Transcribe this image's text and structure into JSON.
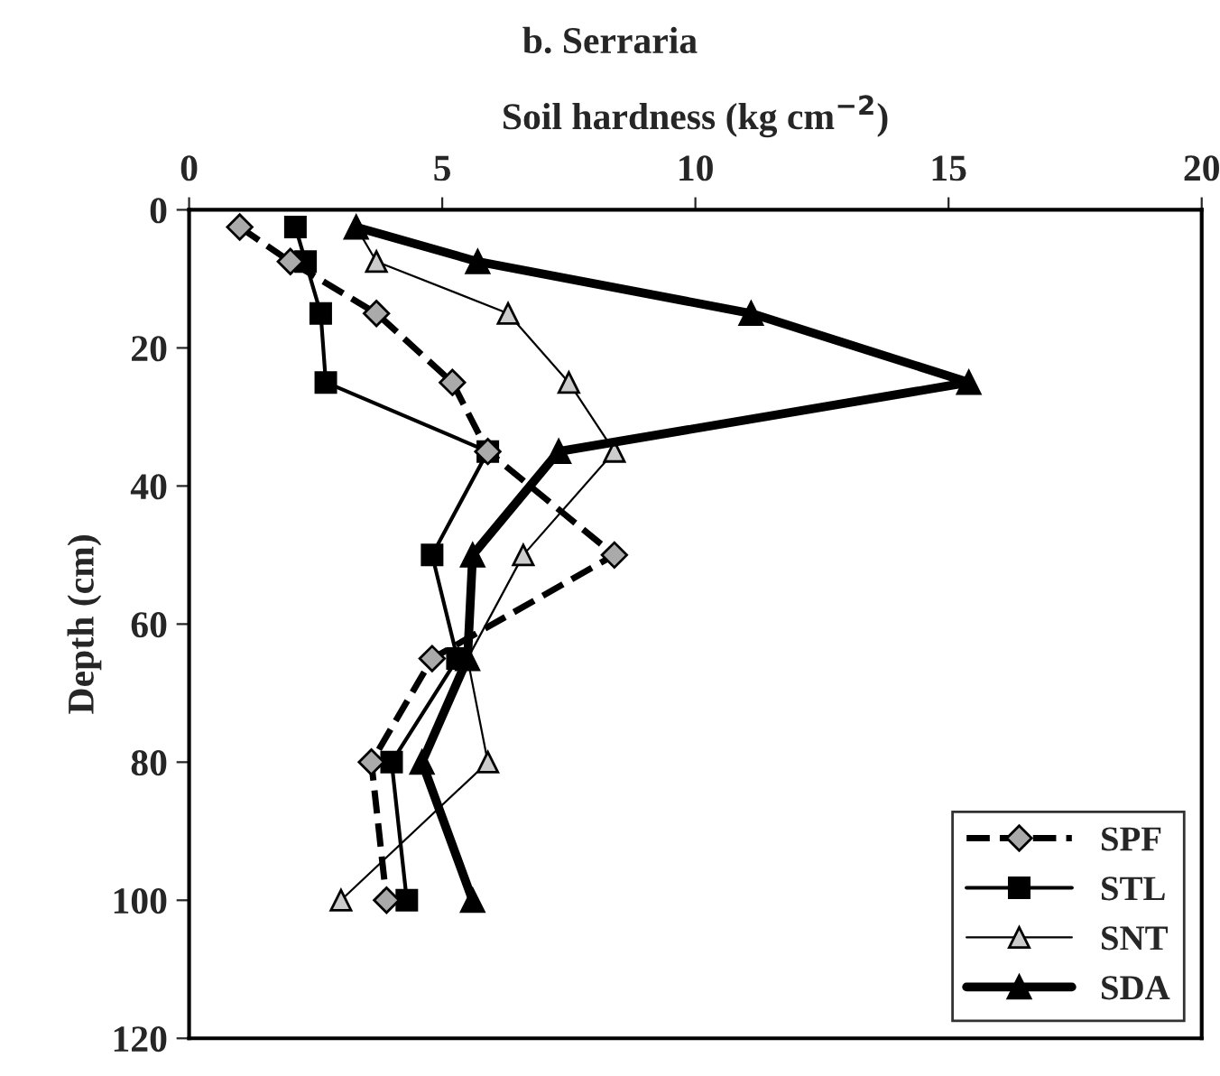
{
  "chart_data": {
    "type": "line",
    "title": "b. Serraria",
    "xlabel": "Soil hardness (kg cm$^{−2}$)",
    "ylabel": "Depth (cm)",
    "xlim": [
      0,
      20
    ],
    "xticks": [
      0,
      5,
      10,
      15,
      20
    ],
    "ylim": [
      120,
      0
    ],
    "yticks": [
      0,
      20,
      40,
      60,
      80,
      100,
      120
    ],
    "grid": false,
    "legend": "bottom right",
    "series": [
      {
        "name": "SPF",
        "color": "#000000",
        "marker": "diamond",
        "line_style": "dashed",
        "x": [
          1.0,
          2.0,
          3.7,
          5.2,
          5.9,
          8.4,
          4.8,
          3.6,
          3.9
        ],
        "values": [
          2.5,
          7.5,
          15,
          25,
          35,
          50,
          65,
          80,
          100
        ]
      },
      {
        "name": "STL",
        "color": "#000000",
        "marker": "square",
        "line_style": "solid",
        "x": [
          2.1,
          2.3,
          2.6,
          2.7,
          5.9,
          4.8,
          5.3,
          4.0,
          4.3
        ],
        "values": [
          2.5,
          7.5,
          15,
          25,
          35,
          50,
          65,
          80,
          100
        ]
      },
      {
        "name": "SNT",
        "color": "#000000",
        "marker": "triangle",
        "line_style": "solid",
        "x": [
          3.3,
          3.7,
          6.3,
          7.5,
          8.4,
          6.6,
          5.5,
          5.9,
          3.0
        ],
        "values": [
          2.5,
          7.5,
          15,
          25,
          35,
          50,
          65,
          80,
          100
        ]
      },
      {
        "name": "SDA",
        "color": "#000000",
        "marker": "triangle",
        "line_style": "solid",
        "x": [
          3.3,
          5.7,
          11.1,
          15.4,
          7.3,
          5.6,
          5.5,
          4.6,
          5.6
        ],
        "values": [
          2.5,
          7.5,
          15,
          25,
          35,
          50,
          65,
          80,
          100
        ]
      }
    ]
  }
}
